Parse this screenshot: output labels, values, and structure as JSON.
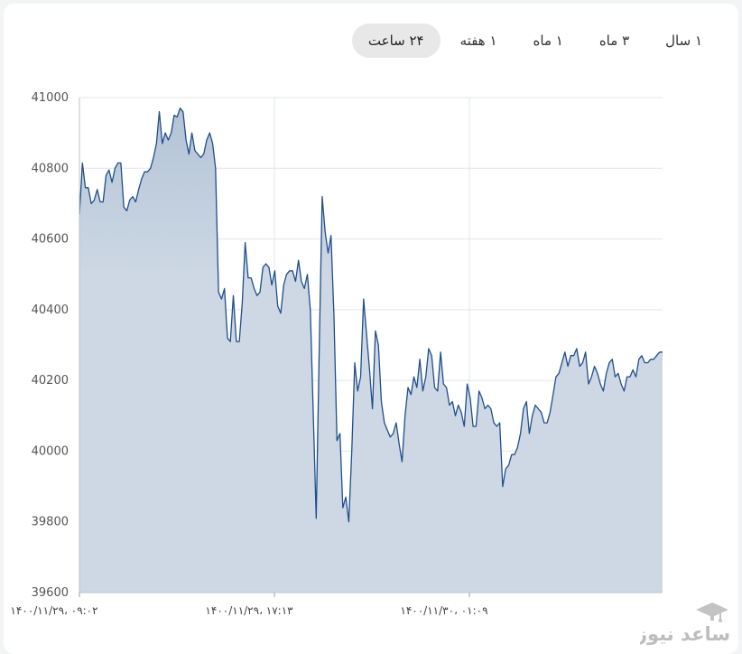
{
  "tabs": [
    {
      "label": "۲۴ ساعت",
      "active": true
    },
    {
      "label": "۱ هفته",
      "active": false
    },
    {
      "label": "۱ ماه",
      "active": false
    },
    {
      "label": "۳ ماه",
      "active": false
    },
    {
      "label": "۱ سال",
      "active": false
    }
  ],
  "watermark": {
    "brand": "ساعد نیوز"
  },
  "colors": {
    "line": "#1f4e8c",
    "fill": "#cdd8e4",
    "grid": "#e2e4e8"
  },
  "chart_data": {
    "type": "area",
    "title": "",
    "xlabel": "",
    "ylabel": "",
    "ylim": [
      39600,
      41000
    ],
    "yticks": [
      39600,
      39800,
      40000,
      40200,
      40400,
      40600,
      40800,
      41000
    ],
    "grid": true,
    "xticks": [
      {
        "label": "۱۴۰۰/۱۱/۲۹، ۰۹:۰۲",
        "at": 0
      },
      {
        "label": "۱۴۰۰/۱۱/۲۹، ۱۷:۱۳",
        "at": 0.3344
      },
      {
        "label": "۱۴۰۰/۱۱/۳۰، ۰۱:۰۹",
        "at": 0.6687
      }
    ],
    "series": [
      {
        "values": [
          40670,
          40815,
          40745,
          40745,
          40700,
          40710,
          40740,
          40705,
          40705,
          40780,
          40795,
          40760,
          40800,
          40815,
          40815,
          40690,
          40680,
          40710,
          40720,
          40705,
          40740,
          40770,
          40790,
          40790,
          40800,
          40830,
          40870,
          40960,
          40870,
          40900,
          40880,
          40900,
          40950,
          40945,
          40970,
          40960,
          40880,
          40840,
          40900,
          40850,
          40840,
          40830,
          40840,
          40880,
          40900,
          40870,
          40800,
          40450,
          40430,
          40460,
          40320,
          40310,
          40440,
          40310,
          40310,
          40420,
          40590,
          40490,
          40490,
          40460,
          40440,
          40450,
          40520,
          40530,
          40520,
          40470,
          40510,
          40410,
          40390,
          40470,
          40500,
          40510,
          40510,
          40480,
          40540,
          40480,
          40460,
          40500,
          40400,
          40100,
          39810,
          40280,
          40720,
          40620,
          40560,
          40610,
          40380,
          40030,
          40050,
          39840,
          39870,
          39800,
          40000,
          40250,
          40170,
          40210,
          40430,
          40330,
          40230,
          40120,
          40340,
          40300,
          40140,
          40080,
          40060,
          40040,
          40050,
          40080,
          40020,
          39970,
          40100,
          40180,
          40160,
          40210,
          40180,
          40260,
          40170,
          40210,
          40290,
          40270,
          40180,
          40170,
          40280,
          40190,
          40180,
          40130,
          40140,
          40100,
          40130,
          40110,
          40070,
          40190,
          40150,
          40070,
          40070,
          40170,
          40150,
          40120,
          40130,
          40120,
          40080,
          40070,
          40080,
          39900,
          39950,
          39960,
          39990,
          39990,
          40010,
          40050,
          40120,
          40140,
          40050,
          40100,
          40130,
          40120,
          40110,
          40080,
          40080,
          40110,
          40160,
          40210,
          40220,
          40250,
          40280,
          40240,
          40270,
          40270,
          40290,
          40240,
          40250,
          40280,
          40190,
          40210,
          40240,
          40220,
          40190,
          40170,
          40220,
          40250,
          40260,
          40210,
          40220,
          40190,
          40170,
          40210,
          40210,
          40230,
          40210,
          40260,
          40270,
          40250,
          40250,
          40260,
          40260,
          40270,
          40280,
          40280
        ]
      }
    ]
  }
}
